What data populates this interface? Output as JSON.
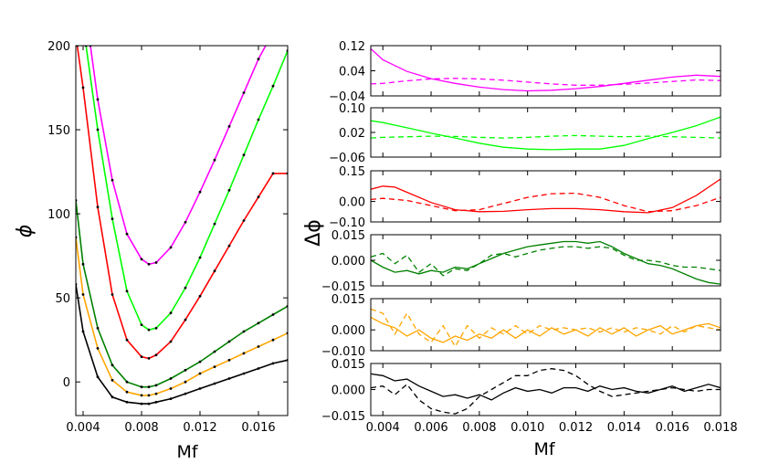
{
  "chart_data": [
    {
      "type": "line",
      "panel": "left",
      "xlabel": "Mf",
      "ylabel": "ϕ",
      "xlim": [
        0.0035,
        0.018
      ],
      "ylim": [
        -20,
        200
      ],
      "xticks": [
        "0.004",
        "0.008",
        "0.012",
        "0.016"
      ],
      "yticks": [
        "0",
        "50",
        "100",
        "150",
        "200"
      ],
      "series": [
        {
          "name": "magenta",
          "color": "#ff00ff",
          "x": [
            0.0045,
            0.005,
            0.006,
            0.007,
            0.008,
            0.0085,
            0.009,
            0.01,
            0.011,
            0.012,
            0.013,
            0.014,
            0.015,
            0.016,
            0.0168
          ],
          "y": [
            200,
            168,
            120,
            88,
            73,
            70,
            71,
            80,
            95,
            113,
            132,
            152,
            172,
            192,
            205
          ]
        },
        {
          "name": "lime",
          "color": "#00ff00",
          "x": [
            0.0042,
            0.005,
            0.006,
            0.007,
            0.008,
            0.0085,
            0.009,
            0.01,
            0.011,
            0.012,
            0.013,
            0.014,
            0.015,
            0.016,
            0.017,
            0.018
          ],
          "y": [
            200,
            150,
            97,
            54,
            34,
            31,
            32,
            41,
            56,
            74,
            94,
            114,
            135,
            156,
            176,
            197
          ]
        },
        {
          "name": "red",
          "color": "#ff0000",
          "x": [
            0.0036,
            0.004,
            0.005,
            0.006,
            0.007,
            0.008,
            0.0085,
            0.009,
            0.01,
            0.011,
            0.012,
            0.013,
            0.014,
            0.015,
            0.016,
            0.017,
            0.018
          ],
          "y": [
            200,
            175,
            104,
            52,
            25,
            15,
            14,
            16,
            24,
            37,
            51,
            66,
            81,
            96,
            110,
            124,
            124
          ]
        },
        {
          "name": "darkgreen",
          "color": "#008000",
          "x": [
            0.0035,
            0.004,
            0.005,
            0.006,
            0.007,
            0.008,
            0.0085,
            0.009,
            0.01,
            0.011,
            0.012,
            0.013,
            0.014,
            0.015,
            0.016,
            0.017,
            0.018
          ],
          "y": [
            108,
            70,
            32,
            10,
            0,
            -3,
            -3,
            -2,
            2,
            7,
            12,
            18,
            24,
            30,
            35,
            40,
            45
          ]
        },
        {
          "name": "orange",
          "color": "#ffa500",
          "x": [
            0.0035,
            0.004,
            0.005,
            0.006,
            0.007,
            0.008,
            0.0085,
            0.009,
            0.01,
            0.011,
            0.012,
            0.013,
            0.014,
            0.015,
            0.016,
            0.017,
            0.018
          ],
          "y": [
            86,
            52,
            20,
            1,
            -6,
            -8,
            -8,
            -7,
            -4,
            0,
            5,
            9,
            13,
            17,
            21,
            25,
            29
          ]
        },
        {
          "name": "black",
          "color": "#000000",
          "x": [
            0.0035,
            0.004,
            0.005,
            0.006,
            0.007,
            0.008,
            0.0085,
            0.009,
            0.01,
            0.011,
            0.012,
            0.013,
            0.014,
            0.015,
            0.016,
            0.017,
            0.018
          ],
          "y": [
            58,
            30,
            3,
            -9,
            -12,
            -13,
            -13,
            -12,
            -10,
            -7,
            -4,
            -1,
            2,
            5,
            8,
            11,
            13
          ]
        }
      ]
    },
    {
      "type": "line",
      "panel": "right-1",
      "xlim": [
        0.0035,
        0.018
      ],
      "ylim": [
        -0.04,
        0.12
      ],
      "yticks": [
        "0.12",
        "0.04",
        "−0.04"
      ],
      "series": [
        {
          "name": "solid",
          "style": "solid",
          "color": "#ff00ff",
          "x": [
            0.0035,
            0.004,
            0.005,
            0.006,
            0.007,
            0.008,
            0.009,
            0.01,
            0.011,
            0.012,
            0.013,
            0.014,
            0.015,
            0.016,
            0.017,
            0.018
          ],
          "y": [
            0.11,
            0.075,
            0.038,
            0.015,
            0.0,
            -0.012,
            -0.02,
            -0.024,
            -0.022,
            -0.017,
            -0.01,
            0.0,
            0.01,
            0.02,
            0.026,
            0.022
          ]
        },
        {
          "name": "dashed",
          "style": "dashed",
          "color": "#ff00ff",
          "x": [
            0.0035,
            0.004,
            0.005,
            0.006,
            0.007,
            0.008,
            0.009,
            0.01,
            0.011,
            0.012,
            0.013,
            0.014,
            0.015,
            0.016,
            0.017,
            0.018
          ],
          "y": [
            -0.002,
            0.0,
            0.008,
            0.014,
            0.016,
            0.014,
            0.01,
            0.004,
            -0.002,
            -0.006,
            -0.006,
            -0.003,
            0.001,
            0.006,
            0.011,
            0.009
          ]
        }
      ]
    },
    {
      "type": "line",
      "panel": "right-2",
      "xlim": [
        0.0035,
        0.018
      ],
      "ylim": [
        -0.06,
        0.1
      ],
      "yticks": [
        "0.10",
        "0.02",
        "−0.06"
      ],
      "series": [
        {
          "name": "solid",
          "style": "solid",
          "color": "#00ff00",
          "x": [
            0.0035,
            0.004,
            0.005,
            0.006,
            0.007,
            0.008,
            0.009,
            0.01,
            0.011,
            0.012,
            0.013,
            0.014,
            0.015,
            0.016,
            0.017,
            0.018
          ],
          "y": [
            0.058,
            0.052,
            0.035,
            0.018,
            0.002,
            -0.015,
            -0.028,
            -0.034,
            -0.036,
            -0.034,
            -0.034,
            -0.022,
            0.0,
            0.02,
            0.042,
            0.07
          ]
        },
        {
          "name": "dashed",
          "style": "dashed",
          "color": "#00ff00",
          "x": [
            0.0035,
            0.004,
            0.005,
            0.006,
            0.007,
            0.008,
            0.009,
            0.01,
            0.011,
            0.012,
            0.013,
            0.014,
            0.015,
            0.016,
            0.017,
            0.018
          ],
          "y": [
            0.002,
            0.004,
            0.006,
            0.008,
            0.007,
            0.004,
            0.002,
            0.004,
            0.008,
            0.01,
            0.008,
            0.006,
            0.008,
            0.006,
            0.004,
            0.002
          ]
        }
      ]
    },
    {
      "type": "line",
      "panel": "right-3",
      "xlim": [
        0.0035,
        0.018
      ],
      "ylim": [
        -0.1,
        0.15
      ],
      "yticks": [
        "0.15",
        "0.00",
        "−0.10"
      ],
      "series": [
        {
          "name": "solid",
          "style": "solid",
          "color": "#ff0000",
          "x": [
            0.0035,
            0.004,
            0.0045,
            0.005,
            0.006,
            0.007,
            0.008,
            0.009,
            0.01,
            0.011,
            0.012,
            0.013,
            0.014,
            0.015,
            0.016,
            0.017,
            0.018
          ],
          "y": [
            0.06,
            0.075,
            0.07,
            0.045,
            -0.005,
            -0.04,
            -0.05,
            -0.048,
            -0.04,
            -0.035,
            -0.035,
            -0.04,
            -0.05,
            -0.055,
            -0.03,
            0.03,
            0.11
          ]
        },
        {
          "name": "dashed",
          "style": "dashed",
          "color": "#ff0000",
          "x": [
            0.0035,
            0.004,
            0.005,
            0.006,
            0.007,
            0.008,
            0.009,
            0.01,
            0.011,
            0.012,
            0.013,
            0.014,
            0.015,
            0.016,
            0.017,
            0.018
          ],
          "y": [
            0.01,
            0.015,
            0.005,
            -0.02,
            -0.045,
            -0.04,
            -0.01,
            0.02,
            0.038,
            0.04,
            0.02,
            -0.02,
            -0.05,
            -0.045,
            -0.02,
            0.02
          ]
        }
      ]
    },
    {
      "type": "line",
      "panel": "right-4",
      "xlim": [
        0.0035,
        0.018
      ],
      "ylim": [
        -0.015,
        0.015
      ],
      "yticks": [
        "0.015",
        "0.000",
        "−0.015"
      ],
      "series": [
        {
          "name": "solid",
          "style": "solid",
          "color": "#008000",
          "x": [
            0.0035,
            0.004,
            0.0045,
            0.005,
            0.0055,
            0.006,
            0.0065,
            0.007,
            0.0075,
            0.008,
            0.0085,
            0.009,
            0.0095,
            0.01,
            0.0105,
            0.011,
            0.0115,
            0.012,
            0.0125,
            0.013,
            0.0135,
            0.014,
            0.0145,
            0.015,
            0.0155,
            0.016,
            0.0165,
            0.017,
            0.0175,
            0.018
          ],
          "y": [
            0.0,
            -0.004,
            -0.007,
            -0.006,
            -0.008,
            -0.006,
            -0.007,
            -0.004,
            -0.005,
            -0.002,
            0.001,
            0.004,
            0.006,
            0.008,
            0.009,
            0.01,
            0.011,
            0.011,
            0.01,
            0.011,
            0.008,
            0.004,
            0.001,
            -0.002,
            -0.003,
            -0.005,
            -0.008,
            -0.011,
            -0.013,
            -0.014
          ]
        },
        {
          "name": "dashed",
          "style": "dashed",
          "color": "#008000",
          "x": [
            0.0035,
            0.004,
            0.0045,
            0.005,
            0.0055,
            0.006,
            0.0065,
            0.007,
            0.0075,
            0.008,
            0.0085,
            0.009,
            0.0095,
            0.01,
            0.0105,
            0.011,
            0.0115,
            0.012,
            0.0125,
            0.013,
            0.0135,
            0.014,
            0.0145,
            0.015,
            0.0155,
            0.016,
            0.0165,
            0.017,
            0.0175,
            0.018
          ],
          "y": [
            0.002,
            0.004,
            -0.002,
            0.003,
            -0.007,
            -0.002,
            -0.009,
            -0.005,
            -0.006,
            -0.002,
            0.003,
            0.004,
            0.002,
            0.004,
            0.006,
            0.007,
            0.008,
            0.008,
            0.007,
            0.008,
            0.007,
            0.003,
            0.0,
            0.0,
            -0.001,
            -0.003,
            -0.004,
            -0.004,
            -0.005,
            -0.006
          ]
        }
      ]
    },
    {
      "type": "line",
      "panel": "right-5",
      "xlim": [
        0.0035,
        0.018
      ],
      "ylim": [
        -0.01,
        0.015
      ],
      "yticks": [
        "0.015",
        "0.000",
        "−0.010"
      ],
      "series": [
        {
          "name": "solid",
          "style": "solid",
          "color": "#ffa500",
          "x": [
            0.0035,
            0.004,
            0.0045,
            0.005,
            0.0055,
            0.006,
            0.0065,
            0.007,
            0.0075,
            0.008,
            0.0085,
            0.009,
            0.0095,
            0.01,
            0.0105,
            0.011,
            0.0115,
            0.012,
            0.0125,
            0.013,
            0.0135,
            0.014,
            0.0145,
            0.015,
            0.0155,
            0.016,
            0.0165,
            0.017,
            0.0175,
            0.018
          ],
          "y": [
            0.006,
            0.003,
            0.001,
            -0.003,
            0.0,
            -0.004,
            -0.006,
            -0.003,
            -0.005,
            -0.002,
            -0.004,
            0.0,
            -0.004,
            0.0,
            -0.003,
            0.001,
            -0.002,
            0.0,
            -0.003,
            0.001,
            -0.002,
            0.001,
            -0.003,
            0.0,
            0.002,
            -0.002,
            0.0,
            0.002,
            0.003,
            0.001
          ]
        },
        {
          "name": "dashed",
          "style": "dashed",
          "color": "#ffa500",
          "x": [
            0.0035,
            0.004,
            0.0045,
            0.005,
            0.0055,
            0.006,
            0.0065,
            0.007,
            0.0075,
            0.008,
            0.0085,
            0.009,
            0.0095,
            0.01,
            0.0105,
            0.011,
            0.0115,
            0.012,
            0.0125,
            0.013,
            0.0135,
            0.014,
            0.0145,
            0.015,
            0.0155,
            0.016,
            0.0165,
            0.017,
            0.0175,
            0.018
          ],
          "y": [
            0.01,
            0.008,
            -0.002,
            0.008,
            -0.002,
            -0.006,
            0.002,
            -0.008,
            0.002,
            -0.004,
            0.001,
            -0.002,
            0.002,
            -0.002,
            0.002,
            0.0,
            0.001,
            0.0,
            0.001,
            -0.001,
            0.001,
            -0.001,
            0.001,
            0.0,
            -0.002,
            0.002,
            -0.001,
            0.002,
            0.001,
            0.0
          ]
        }
      ]
    },
    {
      "type": "line",
      "panel": "right-6",
      "xlabel": "Mf",
      "xlim": [
        0.0035,
        0.018
      ],
      "ylim": [
        -0.015,
        0.015
      ],
      "xticks": [
        "0.004",
        "0.006",
        "0.008",
        "0.010",
        "0.012",
        "0.014",
        "0.016",
        "0.018"
      ],
      "yticks": [
        "0.015",
        "0.000",
        "−0.015"
      ],
      "series": [
        {
          "name": "solid",
          "style": "solid",
          "color": "#000000",
          "x": [
            0.0035,
            0.004,
            0.0045,
            0.005,
            0.0055,
            0.006,
            0.0065,
            0.007,
            0.0075,
            0.008,
            0.0085,
            0.009,
            0.0095,
            0.01,
            0.0105,
            0.011,
            0.0115,
            0.012,
            0.0125,
            0.013,
            0.0135,
            0.014,
            0.0145,
            0.015,
            0.0155,
            0.016,
            0.0165,
            0.017,
            0.0175,
            0.018
          ],
          "y": [
            0.009,
            0.008,
            0.005,
            0.006,
            0.002,
            -0.001,
            -0.004,
            -0.003,
            -0.005,
            -0.003,
            -0.006,
            -0.002,
            0.001,
            -0.001,
            0.0,
            -0.002,
            0.001,
            0.001,
            -0.001,
            0.002,
            0.0,
            0.001,
            -0.001,
            -0.002,
            0.0,
            0.002,
            -0.001,
            0.001,
            0.003,
            0.001
          ]
        },
        {
          "name": "dashed",
          "style": "dashed",
          "color": "#000000",
          "x": [
            0.0035,
            0.004,
            0.0045,
            0.005,
            0.0055,
            0.006,
            0.0065,
            0.007,
            0.0075,
            0.008,
            0.0085,
            0.009,
            0.0095,
            0.01,
            0.0105,
            0.011,
            0.0115,
            0.012,
            0.0125,
            0.013,
            0.0135,
            0.014,
            0.0145,
            0.015,
            0.0155,
            0.016,
            0.0165,
            0.017,
            0.0175,
            0.018
          ],
          "y": [
            0.001,
            0.002,
            -0.003,
            0.003,
            -0.006,
            -0.011,
            -0.013,
            -0.014,
            -0.011,
            -0.004,
            0.0,
            0.004,
            0.008,
            0.008,
            0.011,
            0.012,
            0.011,
            0.008,
            0.003,
            -0.001,
            -0.004,
            -0.003,
            -0.002,
            -0.001,
            0.0,
            0.001,
            0.0,
            -0.001,
            0.0,
            0.0
          ]
        }
      ]
    }
  ],
  "labels": {
    "left_xlabel": "Mf",
    "left_ylabel": "ϕ",
    "right_xlabel": "Mf",
    "right_ylabel": "Δϕ"
  }
}
